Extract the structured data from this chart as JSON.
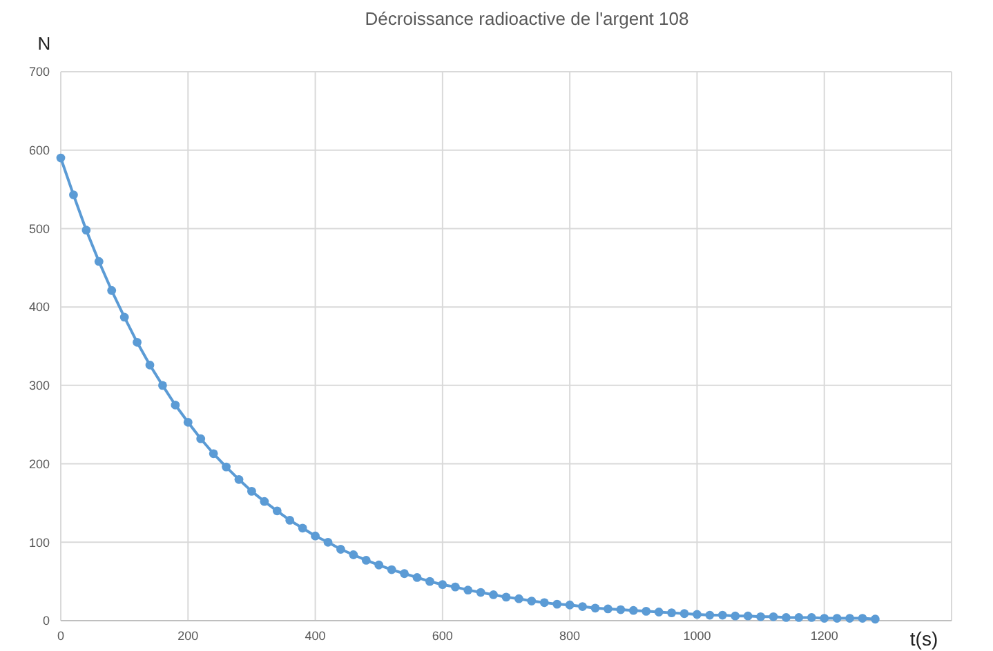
{
  "chart_data": {
    "type": "line",
    "title": "Décroissance radioactive de l'argent 108",
    "xlabel": "t(s)",
    "ylabel": "N",
    "x": [
      0,
      20,
      40,
      60,
      80,
      100,
      120,
      140,
      160,
      180,
      200,
      220,
      240,
      260,
      280,
      300,
      320,
      340,
      360,
      380,
      400,
      420,
      440,
      460,
      480,
      500,
      520,
      540,
      560,
      580,
      600,
      620,
      640,
      660,
      680,
      700,
      720,
      740,
      760,
      780,
      800,
      820,
      840,
      860,
      880,
      900,
      920,
      940,
      960,
      980,
      1000,
      1020,
      1040,
      1060,
      1080,
      1100,
      1120,
      1140,
      1160,
      1180,
      1200,
      1220,
      1240,
      1260,
      1280
    ],
    "series": [
      {
        "color": "#5b9bd5",
        "values": [
          590,
          543,
          498,
          458,
          421,
          387,
          355,
          326,
          300,
          275,
          253,
          232,
          213,
          196,
          180,
          165,
          152,
          140,
          128,
          118,
          108,
          100,
          91,
          84,
          77,
          71,
          65,
          60,
          55,
          50,
          46,
          43,
          39,
          36,
          33,
          30,
          28,
          25,
          23,
          21,
          20,
          18,
          16,
          15,
          14,
          13,
          12,
          11,
          10,
          9,
          8,
          7,
          7,
          6,
          6,
          5,
          5,
          4,
          4,
          4,
          3,
          3,
          3,
          3,
          2
        ]
      }
    ],
    "xlim": [
      0,
      1400
    ],
    "xticks": [
      0,
      200,
      400,
      600,
      800,
      1000,
      1200,
      {
        "value": 1400,
        "label": null
      }
    ],
    "ylim": [
      0,
      700
    ],
    "yticks": [
      0,
      100,
      200,
      300,
      400,
      500,
      600,
      700
    ],
    "grid": true,
    "marker": "circle",
    "line_style": "solid"
  }
}
